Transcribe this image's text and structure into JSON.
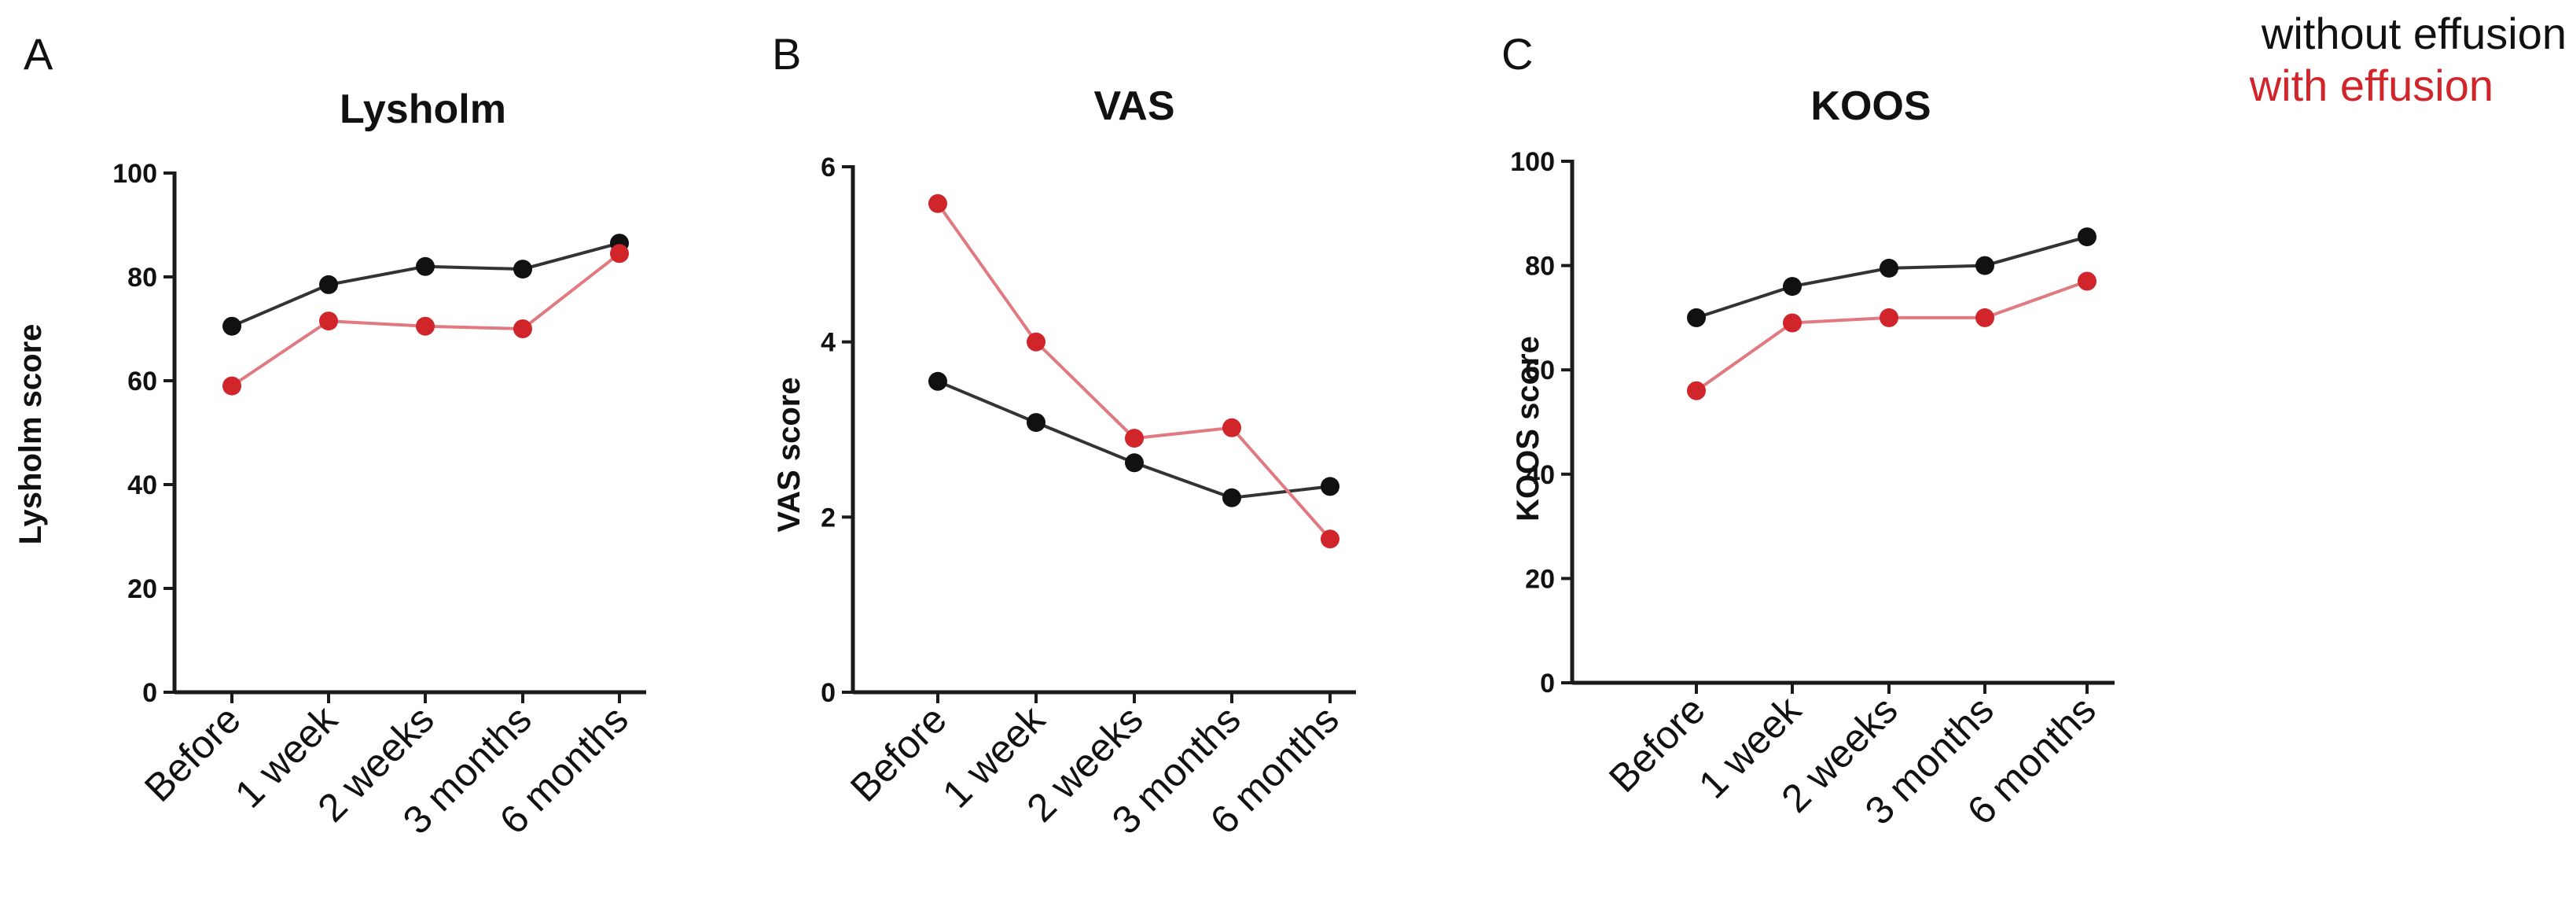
{
  "legend": [
    {
      "label": "without effusion",
      "color": "#111111"
    },
    {
      "label": "with effusion",
      "color": "#d0252b"
    }
  ],
  "chart_data": [
    {
      "type": "line",
      "panel": "A",
      "title": "Lysholm",
      "xlabel": "",
      "ylabel": "Lysholm score",
      "ylim": [
        0,
        100
      ],
      "yticks": [
        0,
        20,
        40,
        60,
        80,
        100
      ],
      "categories": [
        "Before",
        "1 week",
        "2 weeks",
        "3 months",
        "6 months"
      ],
      "series": [
        {
          "name": "without effusion",
          "color": "#111111",
          "line_color": "#333333",
          "values": [
            70.5,
            78.5,
            82,
            81.5,
            86.5
          ]
        },
        {
          "name": "with effusion",
          "color": "#d0252b",
          "line_color": "#e07a80",
          "values": [
            59,
            71.5,
            70.5,
            70,
            84.5
          ]
        }
      ]
    },
    {
      "type": "line",
      "panel": "B",
      "title": "VAS",
      "xlabel": "",
      "ylabel": "VAS score",
      "ylim": [
        0,
        6
      ],
      "yticks": [
        0,
        2,
        4,
        6
      ],
      "categories": [
        "Before",
        "1 week",
        "2 weeks",
        "3 months",
        "6 months"
      ],
      "series": [
        {
          "name": "without effusion",
          "color": "#111111",
          "line_color": "#333333",
          "values": [
            3.55,
            3.08,
            2.62,
            2.22,
            2.35
          ]
        },
        {
          "name": "with effusion",
          "color": "#d0252b",
          "line_color": "#e07a80",
          "values": [
            5.58,
            4.0,
            2.9,
            3.02,
            1.75
          ]
        }
      ]
    },
    {
      "type": "line",
      "panel": "C",
      "title": "KOOS",
      "xlabel": "",
      "ylabel": "KOOS score",
      "ylim": [
        0,
        100
      ],
      "yticks": [
        0,
        20,
        40,
        60,
        80,
        100
      ],
      "categories": [
        "Before",
        "1 week",
        "2 weeks",
        "3 months",
        "6 months"
      ],
      "series": [
        {
          "name": "without effusion",
          "color": "#111111",
          "line_color": "#333333",
          "values": [
            70,
            76,
            79.5,
            80,
            85.5
          ]
        },
        {
          "name": "with effusion",
          "color": "#d0252b",
          "line_color": "#e07a80",
          "values": [
            56,
            69,
            70,
            70,
            77
          ]
        }
      ]
    }
  ]
}
